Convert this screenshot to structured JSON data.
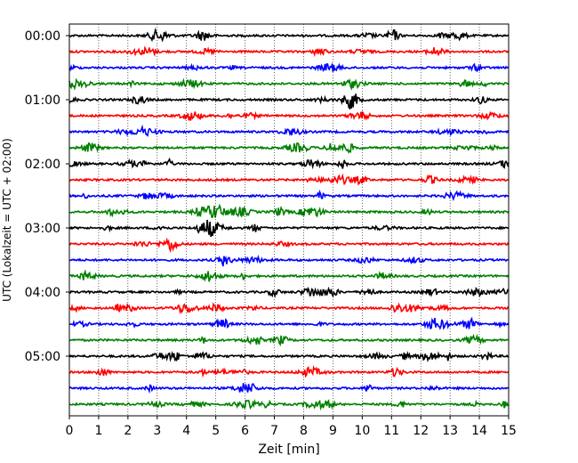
{
  "chart_data": {
    "type": "line",
    "title": "",
    "xlabel": "Zeit  [min]",
    "ylabel": "UTC (Lokalzeit = UTC + 02:00)",
    "xlim": [
      0,
      15
    ],
    "x_ticks": [
      "0",
      "1",
      "2",
      "3",
      "4",
      "5",
      "6",
      "7",
      "8",
      "9",
      "10",
      "11",
      "12",
      "13",
      "14",
      "15"
    ],
    "grid": "vertical dotted lines at each minute",
    "trace_colors": [
      "#000000",
      "#ff0000",
      "#0000ff",
      "#008000"
    ],
    "row_labels": [
      {
        "row": 0,
        "text": "00:00"
      },
      {
        "row": 4,
        "text": "01:00"
      },
      {
        "row": 8,
        "text": "02:00"
      },
      {
        "row": 12,
        "text": "03:00"
      },
      {
        "row": 16,
        "text": "04:00"
      },
      {
        "row": 20,
        "text": "05:00"
      }
    ],
    "rows": 24,
    "row_interval_minutes": 15
  }
}
